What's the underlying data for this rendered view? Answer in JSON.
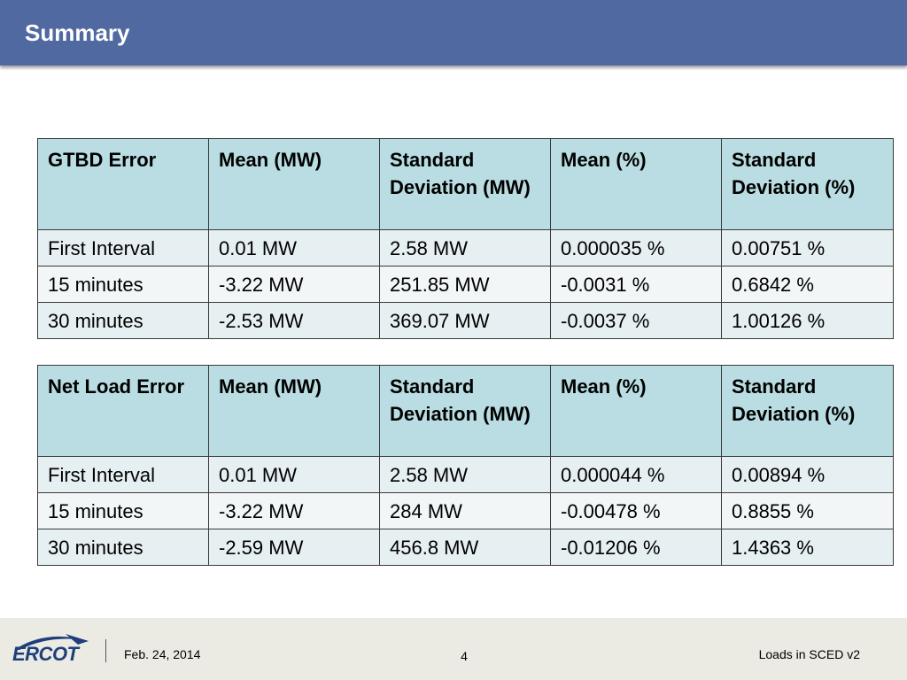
{
  "header": {
    "title": "Summary"
  },
  "tables": [
    {
      "headers": [
        "GTBD Error",
        "Mean (MW)",
        "Standard Deviation (MW)",
        "Mean (%)",
        "Standard Deviation (%)"
      ],
      "rows": [
        [
          "First Interval",
          "0.01 MW",
          "2.58 MW",
          "0.000035 %",
          "0.00751 %"
        ],
        [
          "15 minutes",
          "-3.22 MW",
          "251.85 MW",
          "-0.0031 %",
          "0.6842 %"
        ],
        [
          "30 minutes",
          "-2.53 MW",
          "369.07 MW",
          "-0.0037 %",
          "1.00126 %"
        ]
      ]
    },
    {
      "headers": [
        "Net Load Error",
        "Mean (MW)",
        "Standard Deviation (MW)",
        "Mean (%)",
        "Standard Deviation (%)"
      ],
      "rows": [
        [
          "First Interval",
          "0.01 MW",
          "2.58 MW",
          "0.000044 %",
          "0.00894 %"
        ],
        [
          "15 minutes",
          "-3.22 MW",
          "284 MW",
          "-0.00478 %",
          "0.8855 %"
        ],
        [
          "30 minutes",
          "-2.59 MW",
          "456.8 MW",
          "-0.01206 %",
          "1.4363 %"
        ]
      ]
    }
  ],
  "footer": {
    "logo_text": "ERCOT",
    "date": "Feb. 24, 2014",
    "page_number": "4",
    "doc_title": "Loads in SCED v2"
  },
  "colors": {
    "header_bar": "#5169a1",
    "table_header": "#b9dde2",
    "logo": "#1d3f7a"
  }
}
